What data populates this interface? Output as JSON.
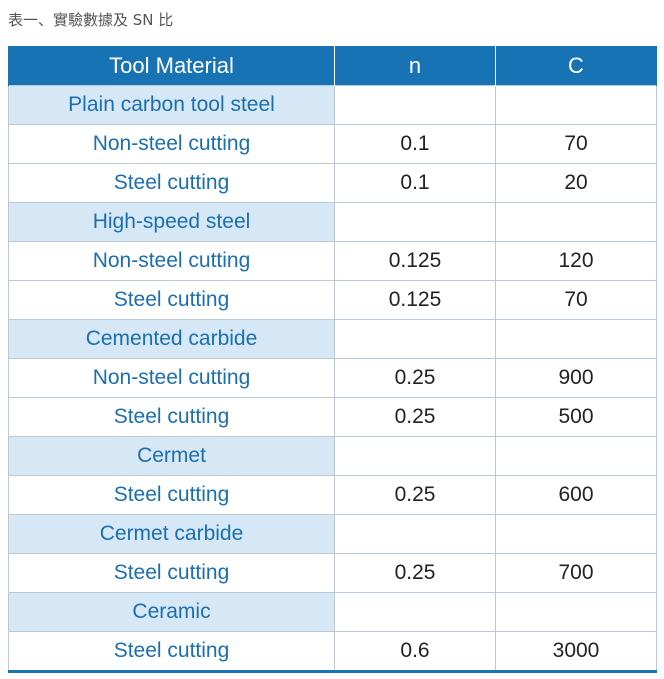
{
  "caption": "表一、實驗數據及 SN 比",
  "table": {
    "headers": {
      "material": "Tool Material",
      "n": "n",
      "c": "C"
    },
    "rows": [
      {
        "type": "category",
        "label": "Plain carbon tool steel",
        "n": "",
        "c": ""
      },
      {
        "type": "item",
        "label": "Non-steel cutting",
        "n": "0.1",
        "c": "70"
      },
      {
        "type": "item",
        "label": "Steel cutting",
        "n": "0.1",
        "c": "20"
      },
      {
        "type": "category",
        "label": "High-speed steel",
        "n": "",
        "c": ""
      },
      {
        "type": "item",
        "label": "Non-steel cutting",
        "n": "0.125",
        "c": "120"
      },
      {
        "type": "item",
        "label": "Steel cutting",
        "n": "0.125",
        "c": "70"
      },
      {
        "type": "category",
        "label": "Cemented carbide",
        "n": "",
        "c": ""
      },
      {
        "type": "item",
        "label": "Non-steel cutting",
        "n": "0.25",
        "c": "900"
      },
      {
        "type": "item",
        "label": "Steel cutting",
        "n": "0.25",
        "c": "500"
      },
      {
        "type": "category",
        "label": "Cermet",
        "n": "",
        "c": ""
      },
      {
        "type": "item",
        "label": "Steel cutting",
        "n": "0.25",
        "c": "600"
      },
      {
        "type": "category",
        "label": "Cermet carbide",
        "n": "",
        "c": ""
      },
      {
        "type": "item",
        "label": "Steel cutting",
        "n": "0.25",
        "c": "700"
      },
      {
        "type": "category",
        "label": "Ceramic",
        "n": "",
        "c": ""
      },
      {
        "type": "item",
        "label": "Steel cutting",
        "n": "0.6",
        "c": "3000"
      }
    ]
  },
  "colors": {
    "header_bg": "#1873b5",
    "category_bg": "#d6e8f6",
    "label_text": "#1b6fb0",
    "border": "#b9c9d6"
  }
}
